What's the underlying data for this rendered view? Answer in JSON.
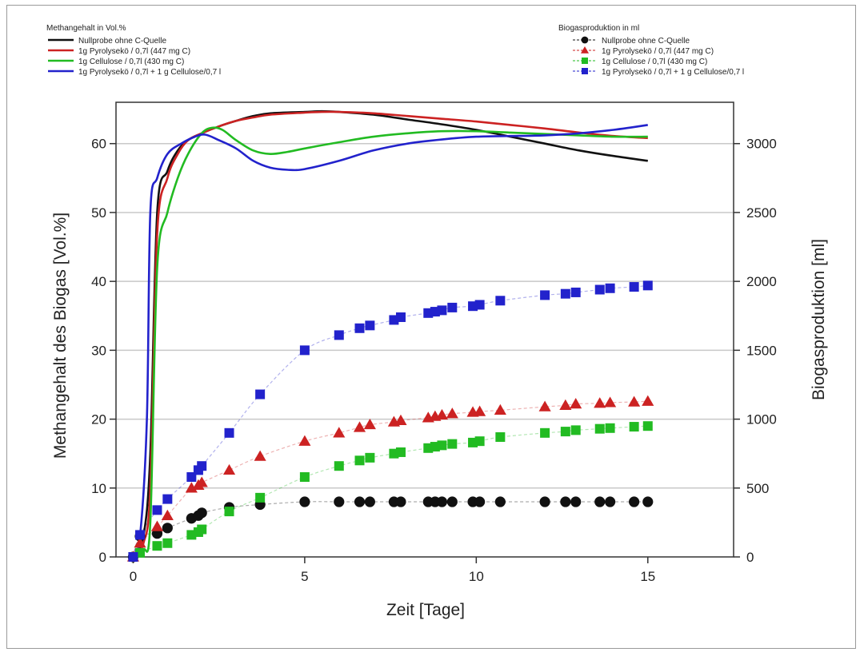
{
  "chart_data": {
    "type": "line",
    "xlabel": "Zeit [Tage]",
    "ylabel_left": "Methangehalt des Biogas [Vol.%]",
    "ylabel_right": "Biogasproduktion [ml]",
    "xlim": [
      -0.5,
      17.5
    ],
    "ylim_left": [
      0,
      66
    ],
    "ylim_right": [
      0,
      3300
    ],
    "x_ticks": [
      0,
      5,
      10,
      15
    ],
    "y_ticks_left": [
      0,
      10,
      20,
      30,
      40,
      50,
      60
    ],
    "y_ticks_right": [
      0,
      500,
      1000,
      1500,
      2000,
      2500,
      3000
    ],
    "grid": "horizontal",
    "legend_left": {
      "title": "Methangehalt in Vol.%",
      "placement": "top-left",
      "entries": [
        {
          "label": "Nullprobe ohne C-Quelle",
          "color": "#111111"
        },
        {
          "label": "1g Pyrolysekö / 0,7l (447 mg C)",
          "color": "#cc2222"
        },
        {
          "label": "1g Cellulose / 0,7l (430 mg C)",
          "color": "#22bb22"
        },
        {
          "label": "1g Pyrolysekö / 0,7l + 1 g Cellulose/0,7 l",
          "color": "#2222cc"
        }
      ]
    },
    "legend_right": {
      "title": "Biogasproduktion in ml",
      "placement": "top-right",
      "entries": [
        {
          "label": "Nullprobe ohne C-Quelle",
          "color": "#111111",
          "marker": "circle"
        },
        {
          "label": "1g Pyrolysekö / 0,7l (447 mg C)",
          "color": "#cc2222",
          "marker": "triangle"
        },
        {
          "label": "1g Cellulose / 0,7l (430 mg C)",
          "color": "#22bb22",
          "marker": "square"
        },
        {
          "label": "1g Pyrolysekö / 0,7l + 1 g Cellulose/0,7 l",
          "color": "#2222cc",
          "marker": "square"
        }
      ]
    },
    "methane_series": [
      {
        "color": "#111111",
        "axis": "left",
        "x": [
          0,
          0.3,
          0.5,
          0.7,
          1.0,
          1.3,
          1.6,
          2.0,
          2.5,
          3.0,
          3.5,
          4.0,
          5.0,
          5.5,
          6.0,
          7.0,
          8.0,
          9.0,
          10.0,
          11.0,
          12.0,
          13.0,
          14.0,
          15.0
        ],
        "y": [
          0,
          3,
          15,
          50,
          56,
          59,
          60.5,
          61.5,
          62.5,
          63.3,
          64,
          64.4,
          64.6,
          64.7,
          64.6,
          64.2,
          63.5,
          62.8,
          62.0,
          61.0,
          60.0,
          59.0,
          58.2,
          57.5
        ]
      },
      {
        "color": "#cc2222",
        "axis": "left",
        "x": [
          0,
          0.3,
          0.5,
          0.7,
          1.0,
          1.3,
          1.6,
          2.0,
          2.5,
          3.0,
          3.5,
          4.0,
          5.0,
          5.5,
          6.0,
          7.0,
          8.0,
          9.0,
          10.0,
          11.0,
          12.0,
          13.0,
          14.0,
          15.0
        ],
        "y": [
          0,
          2,
          10,
          47,
          55,
          58.5,
          60.5,
          61.5,
          62.5,
          63.3,
          63.8,
          64.2,
          64.5,
          64.6,
          64.6,
          64.4,
          64.0,
          63.6,
          63.2,
          62.7,
          62.2,
          61.6,
          61.1,
          60.8
        ]
      },
      {
        "color": "#22bb22",
        "axis": "left",
        "x": [
          0,
          0.3,
          0.5,
          0.7,
          1.0,
          1.3,
          1.6,
          2.0,
          2.3,
          2.6,
          3.0,
          3.5,
          4.0,
          4.5,
          5.0,
          6.0,
          7.0,
          8.0,
          9.0,
          10.0,
          11.0,
          12.0,
          13.0,
          14.0,
          15.0
        ],
        "y": [
          0,
          1,
          5,
          42,
          50,
          55,
          58.5,
          61.5,
          62.3,
          62.0,
          60.5,
          59.0,
          58.5,
          58.8,
          59.3,
          60.2,
          61.0,
          61.5,
          61.8,
          61.8,
          61.6,
          61.4,
          61.2,
          61.0,
          61.0
        ]
      },
      {
        "color": "#2222cc",
        "axis": "left",
        "x": [
          0,
          0.2,
          0.4,
          0.5,
          0.7,
          1.0,
          1.4,
          1.8,
          2.1,
          2.5,
          3.0,
          3.5,
          4.0,
          4.5,
          5.0,
          6.0,
          7.0,
          8.0,
          9.0,
          10.0,
          11.0,
          12.0,
          13.0,
          14.0,
          15.0
        ],
        "y": [
          0,
          3,
          20,
          50,
          55,
          58.5,
          60,
          61,
          61.3,
          60.5,
          59.3,
          57.5,
          56.5,
          56.2,
          56.3,
          57.5,
          59,
          60,
          60.6,
          61,
          61.1,
          61.2,
          61.5,
          62,
          62.7
        ]
      }
    ],
    "biogas_series": [
      {
        "color": "#111111",
        "marker": "circle",
        "axis": "right",
        "x": [
          0,
          0.2,
          0.7,
          1.0,
          1.7,
          1.9,
          2.0,
          2.8,
          3.7,
          5.0,
          6.0,
          6.6,
          6.9,
          7.6,
          7.8,
          8.6,
          8.8,
          9.0,
          9.3,
          9.9,
          10.1,
          10.7,
          12.0,
          12.6,
          12.9,
          13.6,
          13.9,
          14.6,
          15.0
        ],
        "y": [
          0,
          150,
          170,
          210,
          280,
          300,
          320,
          360,
          380,
          400,
          400,
          400,
          400,
          400,
          400,
          400,
          400,
          400,
          400,
          400,
          400,
          400,
          400,
          400,
          400,
          400,
          400,
          400,
          400
        ]
      },
      {
        "color": "#cc2222",
        "marker": "triangle",
        "axis": "right",
        "x": [
          0,
          0.2,
          0.7,
          1.0,
          1.7,
          1.9,
          2.0,
          2.8,
          3.7,
          5.0,
          6.0,
          6.6,
          6.9,
          7.6,
          7.8,
          8.6,
          8.8,
          9.0,
          9.3,
          9.9,
          10.1,
          10.7,
          12.0,
          12.6,
          12.9,
          13.6,
          13.9,
          14.6,
          15.0
        ],
        "y": [
          0,
          100,
          220,
          300,
          500,
          520,
          540,
          630,
          730,
          840,
          900,
          940,
          960,
          980,
          990,
          1010,
          1020,
          1030,
          1040,
          1050,
          1055,
          1065,
          1090,
          1100,
          1110,
          1115,
          1120,
          1125,
          1130
        ]
      },
      {
        "color": "#22bb22",
        "marker": "square",
        "axis": "right",
        "x": [
          0,
          0.2,
          0.7,
          1.0,
          1.7,
          1.9,
          2.0,
          2.8,
          3.7,
          5.0,
          6.0,
          6.6,
          6.9,
          7.6,
          7.8,
          8.6,
          8.8,
          9.0,
          9.3,
          9.9,
          10.1,
          10.7,
          12.0,
          12.6,
          12.9,
          13.6,
          13.9,
          14.6,
          15.0
        ],
        "y": [
          0,
          30,
          80,
          100,
          160,
          180,
          200,
          330,
          430,
          580,
          660,
          700,
          720,
          750,
          760,
          790,
          800,
          810,
          820,
          830,
          840,
          870,
          900,
          910,
          920,
          930,
          935,
          945,
          950
        ]
      },
      {
        "color": "#2222cc",
        "marker": "square",
        "axis": "right",
        "x": [
          0,
          0.2,
          0.7,
          1.0,
          1.7,
          1.9,
          2.0,
          2.8,
          3.7,
          5.0,
          6.0,
          6.6,
          6.9,
          7.6,
          7.8,
          8.6,
          8.8,
          9.0,
          9.3,
          9.9,
          10.1,
          10.7,
          12.0,
          12.6,
          12.9,
          13.6,
          13.9,
          14.6,
          15.0
        ],
        "y": [
          0,
          160,
          340,
          420,
          580,
          630,
          660,
          900,
          1180,
          1500,
          1610,
          1660,
          1680,
          1720,
          1740,
          1770,
          1780,
          1790,
          1810,
          1820,
          1830,
          1860,
          1900,
          1910,
          1920,
          1940,
          1950,
          1960,
          1970
        ]
      }
    ]
  }
}
